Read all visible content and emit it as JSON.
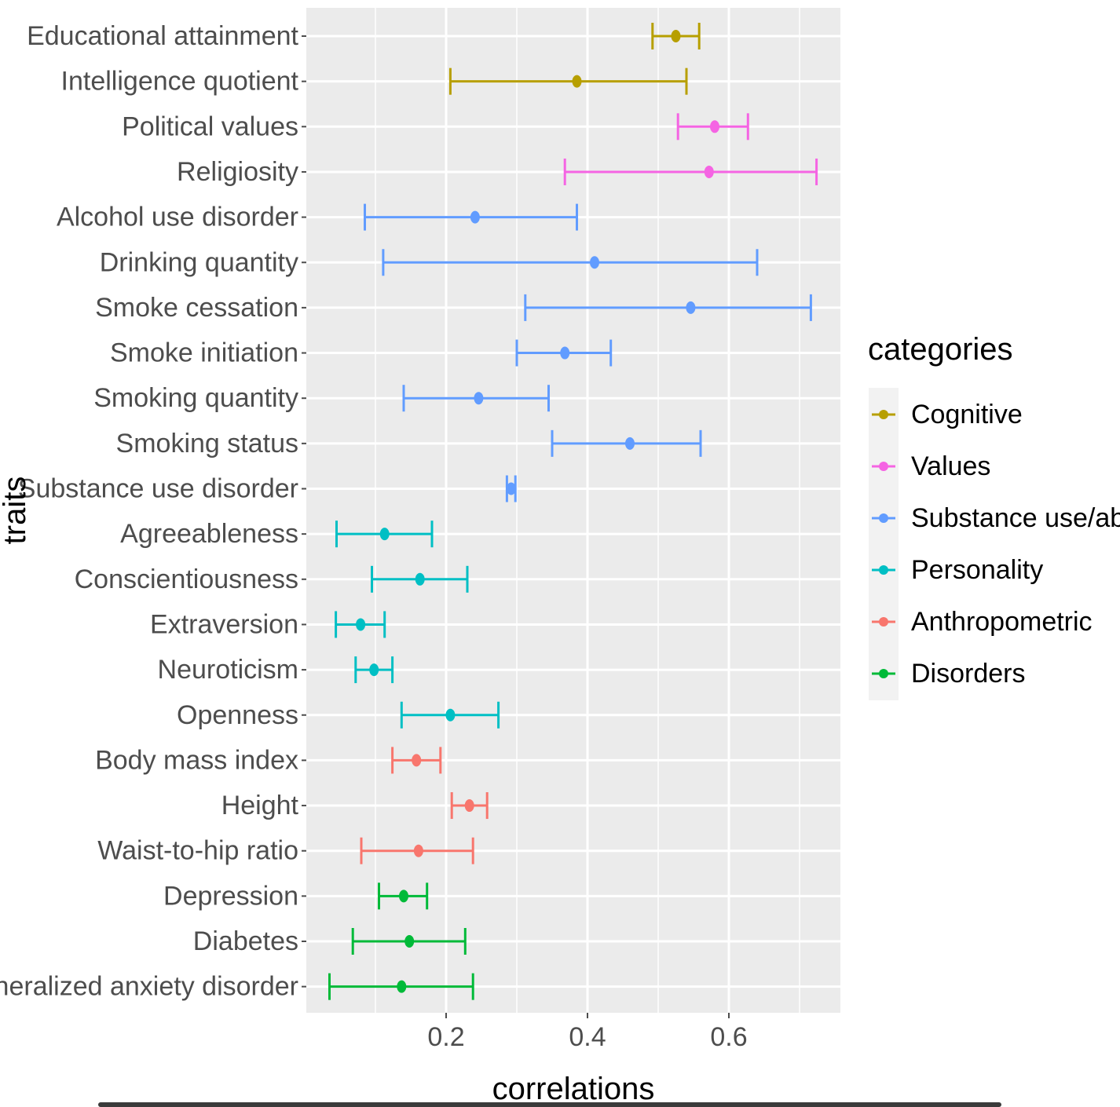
{
  "chart_data": {
    "type": "errorbar",
    "orientation": "horizontal",
    "title": "",
    "xlabel": "correlations",
    "ylabel": "traits",
    "xlim": [
      0.0,
      0.76
    ],
    "xticks": [
      0.2,
      0.4,
      0.6
    ],
    "xtick_labels": [
      "0.2",
      "0.4",
      "0.6"
    ],
    "grid": true,
    "legend": {
      "title": "categories",
      "placement": "right",
      "entries": [
        {
          "name": "Cognitive",
          "color": "#B79F00"
        },
        {
          "name": "Values",
          "color": "#F564E3"
        },
        {
          "name": "Substance use/abuse",
          "color": "#619CFF"
        },
        {
          "name": "Personality",
          "color": "#00BFC4"
        },
        {
          "name": "Anthropometric",
          "color": "#F8766D"
        },
        {
          "name": "Disorders",
          "color": "#00BA38"
        }
      ]
    },
    "traits": [
      {
        "trait": "Educational attainment",
        "category": "Cognitive",
        "value": 0.525,
        "low": 0.492,
        "high": 0.558
      },
      {
        "trait": "Intelligence quotient",
        "category": "Cognitive",
        "value": 0.385,
        "low": 0.206,
        "high": 0.54
      },
      {
        "trait": "Political values",
        "category": "Values",
        "value": 0.58,
        "low": 0.528,
        "high": 0.627
      },
      {
        "trait": "Religiosity",
        "category": "Values",
        "value": 0.572,
        "low": 0.368,
        "high": 0.724
      },
      {
        "trait": "Alcohol use disorder",
        "category": "Substance use/abuse",
        "value": 0.241,
        "low": 0.085,
        "high": 0.385
      },
      {
        "trait": "Drinking quantity",
        "category": "Substance use/abuse",
        "value": 0.41,
        "low": 0.111,
        "high": 0.64
      },
      {
        "trait": "Smoke cessation",
        "category": "Substance use/abuse",
        "value": 0.546,
        "low": 0.312,
        "high": 0.716
      },
      {
        "trait": "Smoke initiation",
        "category": "Substance use/abuse",
        "value": 0.368,
        "low": 0.3,
        "high": 0.433
      },
      {
        "trait": "Smoking quantity",
        "category": "Substance use/abuse",
        "value": 0.246,
        "low": 0.14,
        "high": 0.345
      },
      {
        "trait": "Smoking status",
        "category": "Substance use/abuse",
        "value": 0.46,
        "low": 0.35,
        "high": 0.56
      },
      {
        "trait": "Substance use disorder",
        "category": "Substance use/abuse",
        "value": 0.292,
        "low": 0.286,
        "high": 0.298
      },
      {
        "trait": "Agreeableness",
        "category": "Personality",
        "value": 0.113,
        "low": 0.045,
        "high": 0.18
      },
      {
        "trait": "Conscientiousness",
        "category": "Personality",
        "value": 0.163,
        "low": 0.095,
        "high": 0.23
      },
      {
        "trait": "Extraversion",
        "category": "Personality",
        "value": 0.079,
        "low": 0.044,
        "high": 0.113
      },
      {
        "trait": "Neuroticism",
        "category": "Personality",
        "value": 0.098,
        "low": 0.072,
        "high": 0.124
      },
      {
        "trait": "Openness",
        "category": "Personality",
        "value": 0.206,
        "low": 0.137,
        "high": 0.274
      },
      {
        "trait": "Body mass index",
        "category": "Anthropometric",
        "value": 0.158,
        "low": 0.124,
        "high": 0.192
      },
      {
        "trait": "Height",
        "category": "Anthropometric",
        "value": 0.233,
        "low": 0.208,
        "high": 0.258
      },
      {
        "trait": "Waist-to-hip ratio",
        "category": "Anthropometric",
        "value": 0.161,
        "low": 0.08,
        "high": 0.238
      },
      {
        "trait": "Depression",
        "category": "Disorders",
        "value": 0.14,
        "low": 0.105,
        "high": 0.173
      },
      {
        "trait": "Diabetes",
        "category": "Disorders",
        "value": 0.148,
        "low": 0.068,
        "high": 0.227
      },
      {
        "trait": "Generalized anxiety disorder",
        "category": "Disorders",
        "value": 0.137,
        "low": 0.035,
        "high": 0.238
      }
    ]
  }
}
